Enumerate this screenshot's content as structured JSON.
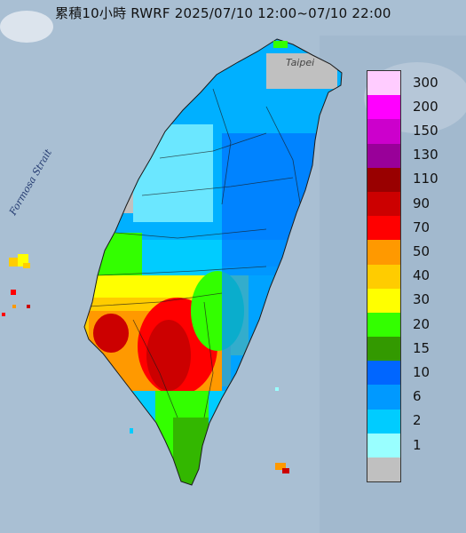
{
  "title": "累積10小時 RWRF 2025/07/10 12:00~07/10 22:00",
  "map_labels": {
    "strait": "Formosa Strait",
    "city": "Taipei"
  },
  "legend": {
    "items": [
      {
        "label": "300",
        "color": "#ffccff"
      },
      {
        "label": "200",
        "color": "#ff00ff"
      },
      {
        "label": "150",
        "color": "#cc00cc"
      },
      {
        "label": "130",
        "color": "#990099"
      },
      {
        "label": "110",
        "color": "#990000"
      },
      {
        "label": "90",
        "color": "#cc0000"
      },
      {
        "label": "70",
        "color": "#ff0000"
      },
      {
        "label": "50",
        "color": "#ff9900"
      },
      {
        "label": "40",
        "color": "#ffcc00"
      },
      {
        "label": "30",
        "color": "#ffff00"
      },
      {
        "label": "20",
        "color": "#33ff00"
      },
      {
        "label": "15",
        "color": "#339900"
      },
      {
        "label": "10",
        "color": "#0066ff"
      },
      {
        "label": "6",
        "color": "#0099ff"
      },
      {
        "label": "2",
        "color": "#00ccff"
      },
      {
        "label": "1",
        "color": "#99ffff"
      },
      {
        "label": "",
        "color": "#c0c0c0"
      }
    ]
  }
}
